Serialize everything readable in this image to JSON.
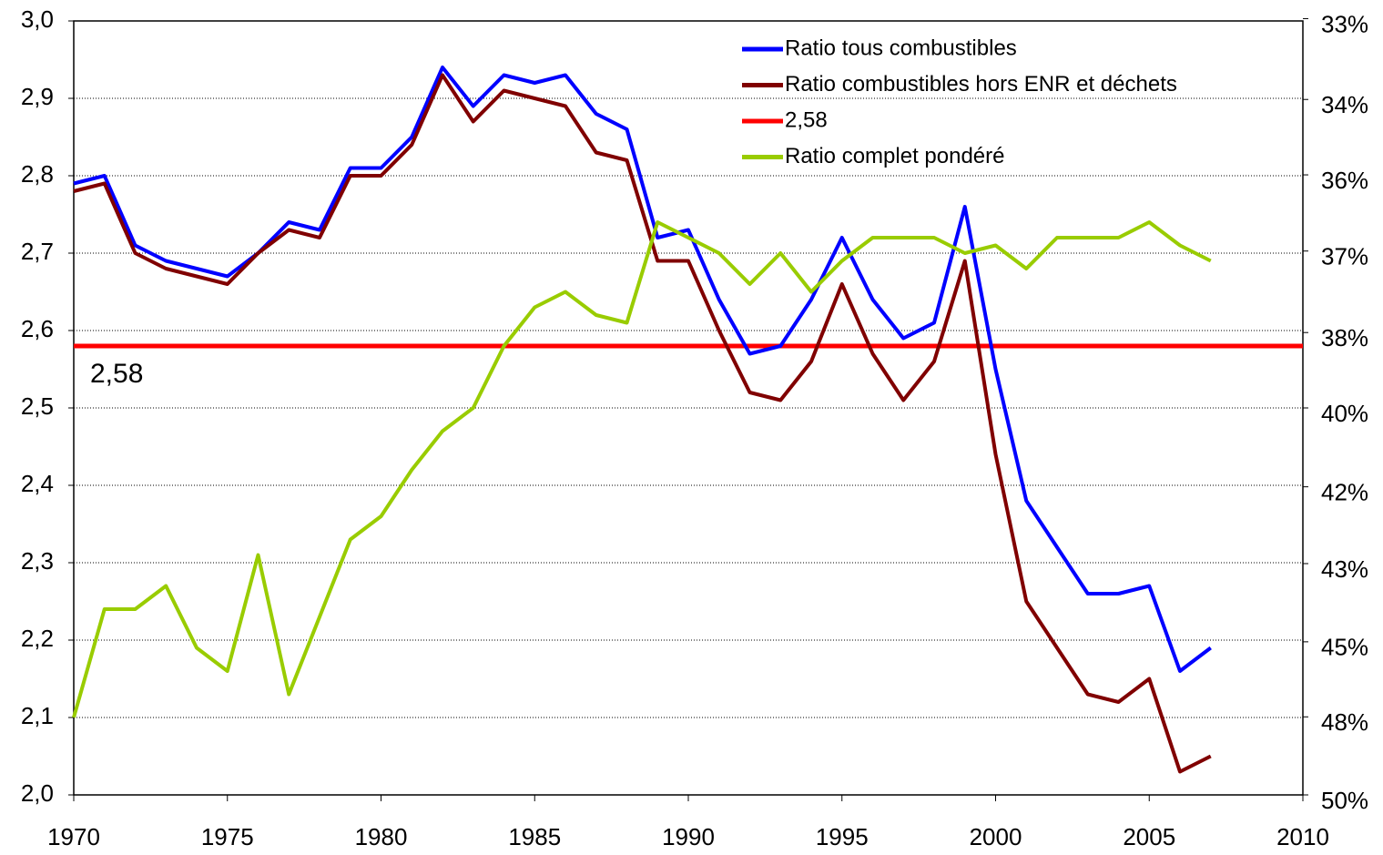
{
  "chart_data": {
    "type": "line",
    "x": [
      1970,
      1971,
      1972,
      1973,
      1974,
      1975,
      1976,
      1977,
      1978,
      1979,
      1980,
      1981,
      1982,
      1983,
      1984,
      1985,
      1986,
      1987,
      1988,
      1989,
      1990,
      1991,
      1992,
      1993,
      1994,
      1995,
      1996,
      1997,
      1998,
      1999,
      2000,
      2001,
      2002,
      2003,
      2004,
      2005,
      2006,
      2007
    ],
    "series": [
      {
        "name": "Ratio tous combustibles",
        "color": "#0000ff",
        "values": [
          2.79,
          2.8,
          2.71,
          2.69,
          2.68,
          2.67,
          2.7,
          2.74,
          2.73,
          2.81,
          2.81,
          2.85,
          2.94,
          2.89,
          2.93,
          2.92,
          2.93,
          2.88,
          2.86,
          2.72,
          2.73,
          2.64,
          2.57,
          2.58,
          2.64,
          2.72,
          2.64,
          2.59,
          2.61,
          2.76,
          2.55,
          2.38,
          2.32,
          2.26,
          2.26,
          2.27,
          2.16,
          2.19
        ]
      },
      {
        "name": "Ratio combustibles hors ENR et déchets",
        "color": "#800000",
        "values": [
          2.78,
          2.79,
          2.7,
          2.68,
          2.67,
          2.66,
          2.7,
          2.73,
          2.72,
          2.8,
          2.8,
          2.84,
          2.93,
          2.87,
          2.91,
          2.9,
          2.89,
          2.83,
          2.82,
          2.69,
          2.69,
          2.6,
          2.52,
          2.51,
          2.56,
          2.66,
          2.57,
          2.51,
          2.56,
          2.69,
          2.44,
          2.25,
          2.19,
          2.13,
          2.12,
          2.15,
          2.03,
          2.05
        ]
      },
      {
        "name": "Ratio complet pondéré",
        "color": "#99cc00",
        "values": [
          2.1,
          2.24,
          2.24,
          2.27,
          2.19,
          2.16,
          2.31,
          2.13,
          2.23,
          2.33,
          2.36,
          2.42,
          2.47,
          2.5,
          2.58,
          2.63,
          2.65,
          2.62,
          2.61,
          2.74,
          2.72,
          2.7,
          2.66,
          2.7,
          2.65,
          2.69,
          2.72,
          2.72,
          2.72,
          2.7,
          2.71,
          2.68,
          2.72,
          2.72,
          2.72,
          2.74,
          2.71,
          2.69
        ]
      }
    ],
    "reference_line": {
      "name": "2,58",
      "value": 2.58,
      "color": "#ff0000"
    },
    "xlim": [
      1970,
      2010
    ],
    "xticks": [
      1970,
      1975,
      1980,
      1985,
      1990,
      1995,
      2000,
      2005,
      2010
    ],
    "ylim": [
      2.0,
      3.0
    ],
    "yticks": [
      {
        "value": 2.0,
        "label": "2,0"
      },
      {
        "value": 2.1,
        "label": "2,1"
      },
      {
        "value": 2.2,
        "label": "2,2"
      },
      {
        "value": 2.3,
        "label": "2,3"
      },
      {
        "value": 2.4,
        "label": "2,4"
      },
      {
        "value": 2.5,
        "label": "2,5"
      },
      {
        "value": 2.6,
        "label": "2,6"
      },
      {
        "value": 2.7,
        "label": "2,7"
      },
      {
        "value": 2.8,
        "label": "2,8"
      },
      {
        "value": 2.9,
        "label": "2,9"
      },
      {
        "value": 3.0,
        "label": "3,0"
      }
    ],
    "y2scale": "reciprocal",
    "y2lim": [
      50,
      33.3
    ],
    "y2ticks": [
      {
        "value": 33.3,
        "label": "33%"
      },
      {
        "value": 34.5,
        "label": "34%"
      },
      {
        "value": 35.7,
        "label": "36%"
      },
      {
        "value": 37.0,
        "label": "37%"
      },
      {
        "value": 38.5,
        "label": "38%"
      },
      {
        "value": 40.0,
        "label": "40%"
      },
      {
        "value": 41.7,
        "label": "42%"
      },
      {
        "value": 43.5,
        "label": "43%"
      },
      {
        "value": 45.5,
        "label": "45%"
      },
      {
        "value": 47.6,
        "label": "48%"
      },
      {
        "value": 50.0,
        "label": "50%"
      }
    ],
    "grid": true,
    "legend": "top-right"
  }
}
